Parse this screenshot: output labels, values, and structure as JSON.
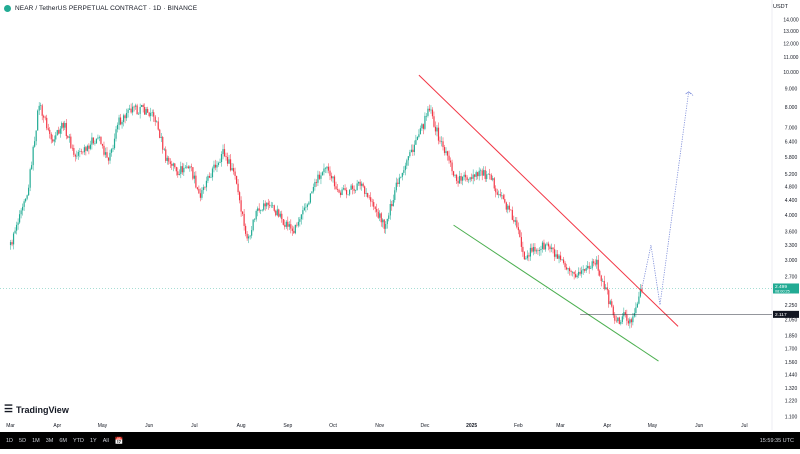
{
  "header": {
    "title": "NEAR / TetherUS PERPETUAL CONTRACT · 1D · BINANCE"
  },
  "currency": "USDT",
  "price_label": {
    "value": "2.499",
    "sub": "08:00:25"
  },
  "support_label": "2.117",
  "logo": {
    "name": "TradingView"
  },
  "time_ranges": [
    "1D",
    "5D",
    "1M",
    "3M",
    "6M",
    "YTD",
    "1Y",
    "All"
  ],
  "clock": "15:59:35 UTC",
  "colors": {
    "up": "#22ab94",
    "down": "#f23645",
    "resistance": "#f23645",
    "support": "#4caf50",
    "projection": "#7b8bd9"
  },
  "chart_data": {
    "type": "candlestick",
    "yscale": "log",
    "ylim": [
      1.09,
      14.5
    ],
    "y_ticks": [
      "14.000",
      "13.000",
      "12.000",
      "11.000",
      "10.000",
      "9.000",
      "8.000",
      "7.000",
      "6.400",
      "5.800",
      "5.200",
      "4.800",
      "4.400",
      "4.000",
      "3.600",
      "3.300",
      "3.000",
      "2.700",
      "2.450",
      "2.250",
      "2.050",
      "1.850",
      "1.700",
      "1.560",
      "1.440",
      "1.320",
      "1.220",
      "1.100"
    ],
    "x_ticks": [
      "Mar",
      "Apr",
      "May",
      "Jun",
      "Jul",
      "Aug",
      "Sep",
      "Oct",
      "Nov",
      "Dec",
      "2025",
      "Feb",
      "Mar",
      "Apr",
      "May",
      "Jun",
      "Jul"
    ],
    "close_path": [
      [
        "2024-03-01",
        3.3
      ],
      [
        "2024-03-12",
        4.5
      ],
      [
        "2024-03-20",
        8.2
      ],
      [
        "2024-03-28",
        6.5
      ],
      [
        "2024-04-05",
        7.2
      ],
      [
        "2024-04-13",
        5.8
      ],
      [
        "2024-04-20",
        6.2
      ],
      [
        "2024-04-28",
        6.6
      ],
      [
        "2024-05-05",
        5.6
      ],
      [
        "2024-05-12",
        7.3
      ],
      [
        "2024-05-20",
        7.8
      ],
      [
        "2024-05-28",
        7.9
      ],
      [
        "2024-06-05",
        7.4
      ],
      [
        "2024-06-12",
        5.8
      ],
      [
        "2024-06-20",
        5.3
      ],
      [
        "2024-06-28",
        5.5
      ],
      [
        "2024-07-05",
        4.5
      ],
      [
        "2024-07-12",
        5.2
      ],
      [
        "2024-07-20",
        6.0
      ],
      [
        "2024-07-28",
        5.2
      ],
      [
        "2024-08-05",
        3.4
      ],
      [
        "2024-08-12",
        4.2
      ],
      [
        "2024-08-20",
        4.3
      ],
      [
        "2024-08-28",
        3.9
      ],
      [
        "2024-09-05",
        3.6
      ],
      [
        "2024-09-12",
        4.1
      ],
      [
        "2024-09-20",
        5.0
      ],
      [
        "2024-09-28",
        5.4
      ],
      [
        "2024-10-05",
        4.6
      ],
      [
        "2024-10-12",
        4.7
      ],
      [
        "2024-10-20",
        4.9
      ],
      [
        "2024-10-28",
        4.2
      ],
      [
        "2024-11-05",
        3.7
      ],
      [
        "2024-11-12",
        4.9
      ],
      [
        "2024-11-20",
        5.8
      ],
      [
        "2024-11-28",
        6.8
      ],
      [
        "2024-12-04",
        7.9
      ],
      [
        "2024-12-10",
        6.6
      ],
      [
        "2024-12-16",
        5.8
      ],
      [
        "2024-12-22",
        5.0
      ],
      [
        "2024-12-30",
        5.1
      ],
      [
        "2025-01-06",
        5.3
      ],
      [
        "2025-01-14",
        5.0
      ],
      [
        "2025-01-22",
        4.4
      ],
      [
        "2025-01-30",
        3.8
      ],
      [
        "2025-02-05",
        3.1
      ],
      [
        "2025-02-12",
        3.2
      ],
      [
        "2025-02-20",
        3.3
      ],
      [
        "2025-02-28",
        3.0
      ],
      [
        "2025-03-08",
        2.7
      ],
      [
        "2025-03-16",
        2.8
      ],
      [
        "2025-03-24",
        3.0
      ],
      [
        "2025-04-01",
        2.4
      ],
      [
        "2025-04-07",
        2.0
      ],
      [
        "2025-04-12",
        2.1
      ],
      [
        "2025-04-16",
        2.0
      ],
      [
        "2025-04-20",
        2.25
      ],
      [
        "2025-04-24",
        2.49
      ]
    ],
    "drawings": [
      {
        "name": "resistance-line",
        "type": "line",
        "points": [
          [
            "2024-11-27",
            9.8
          ],
          [
            "2025-05-18",
            1.96
          ]
        ]
      },
      {
        "name": "support-line",
        "type": "line",
        "points": [
          [
            "2024-12-20",
            3.75
          ],
          [
            "2025-05-05",
            1.57
          ]
        ]
      },
      {
        "name": "support-level",
        "type": "hline",
        "value": 2.117,
        "from": "2025-03-14"
      },
      {
        "name": "projection-path",
        "type": "dotted",
        "points": [
          [
            "2025-04-24",
            2.5
          ],
          [
            "2025-04-30",
            3.3
          ],
          [
            "2025-05-06",
            2.25
          ],
          [
            "2025-05-25",
            8.8
          ],
          [
            "2025-05-28",
            8.6
          ]
        ]
      }
    ],
    "last_price": 2.499
  }
}
